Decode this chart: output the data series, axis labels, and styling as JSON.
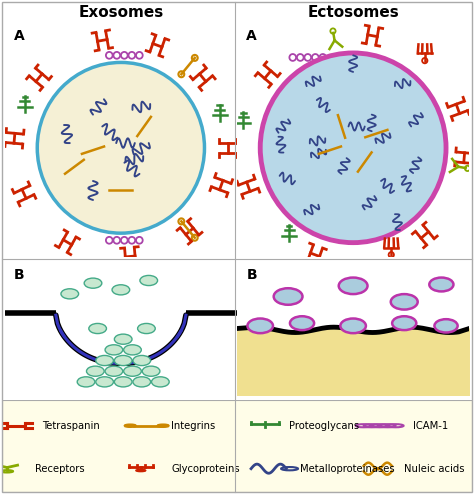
{
  "title_left": "Exosomes",
  "title_right": "Ectosomes",
  "bg_color": "#ffffff",
  "legend_bg": "#fffde8",
  "exosome_fill": "#f5f0d5",
  "exosome_border": "#44aacc",
  "ectosome_fill": "#b8d8e8",
  "ectosome_border": "#cc44aa",
  "endosome_fill": "#ffffff",
  "endosome_border": "#3333bb",
  "cell_fill": "#f0e090",
  "membrane_color": "#111111",
  "vesicle_fill": "#c8e8d0",
  "vesicle_border": "#44aa88",
  "ectosome_bud_fill": "#aaccdd",
  "ectosome_bud_border": "#bb33aa",
  "tetraspanin_color": "#cc2200",
  "integrin_color": "#cc8800",
  "proteoglycan_color": "#338833",
  "icam_color": "#aa44aa",
  "receptor_color": "#88aa00",
  "glycoprotein_color": "#cc2200",
  "metalloproteinase_color": "#334488",
  "nucleic_color": "#cc8800",
  "dark_blue_squiggle": "#334488",
  "legend_items": [
    {
      "label": "Tetraspanin",
      "color": "#cc2200"
    },
    {
      "label": "Integrins",
      "color": "#cc8800"
    },
    {
      "label": "Proteoglycans",
      "color": "#338833"
    },
    {
      "label": "ICAM-1",
      "color": "#aa44aa"
    },
    {
      "label": "Receptors",
      "color": "#88aa00"
    },
    {
      "label": "Glycoproteins",
      "color": "#cc2200"
    },
    {
      "label": "Metalloproteinases",
      "color": "#334488"
    },
    {
      "label": "Nuleic acids",
      "color": "#cc8800"
    }
  ]
}
